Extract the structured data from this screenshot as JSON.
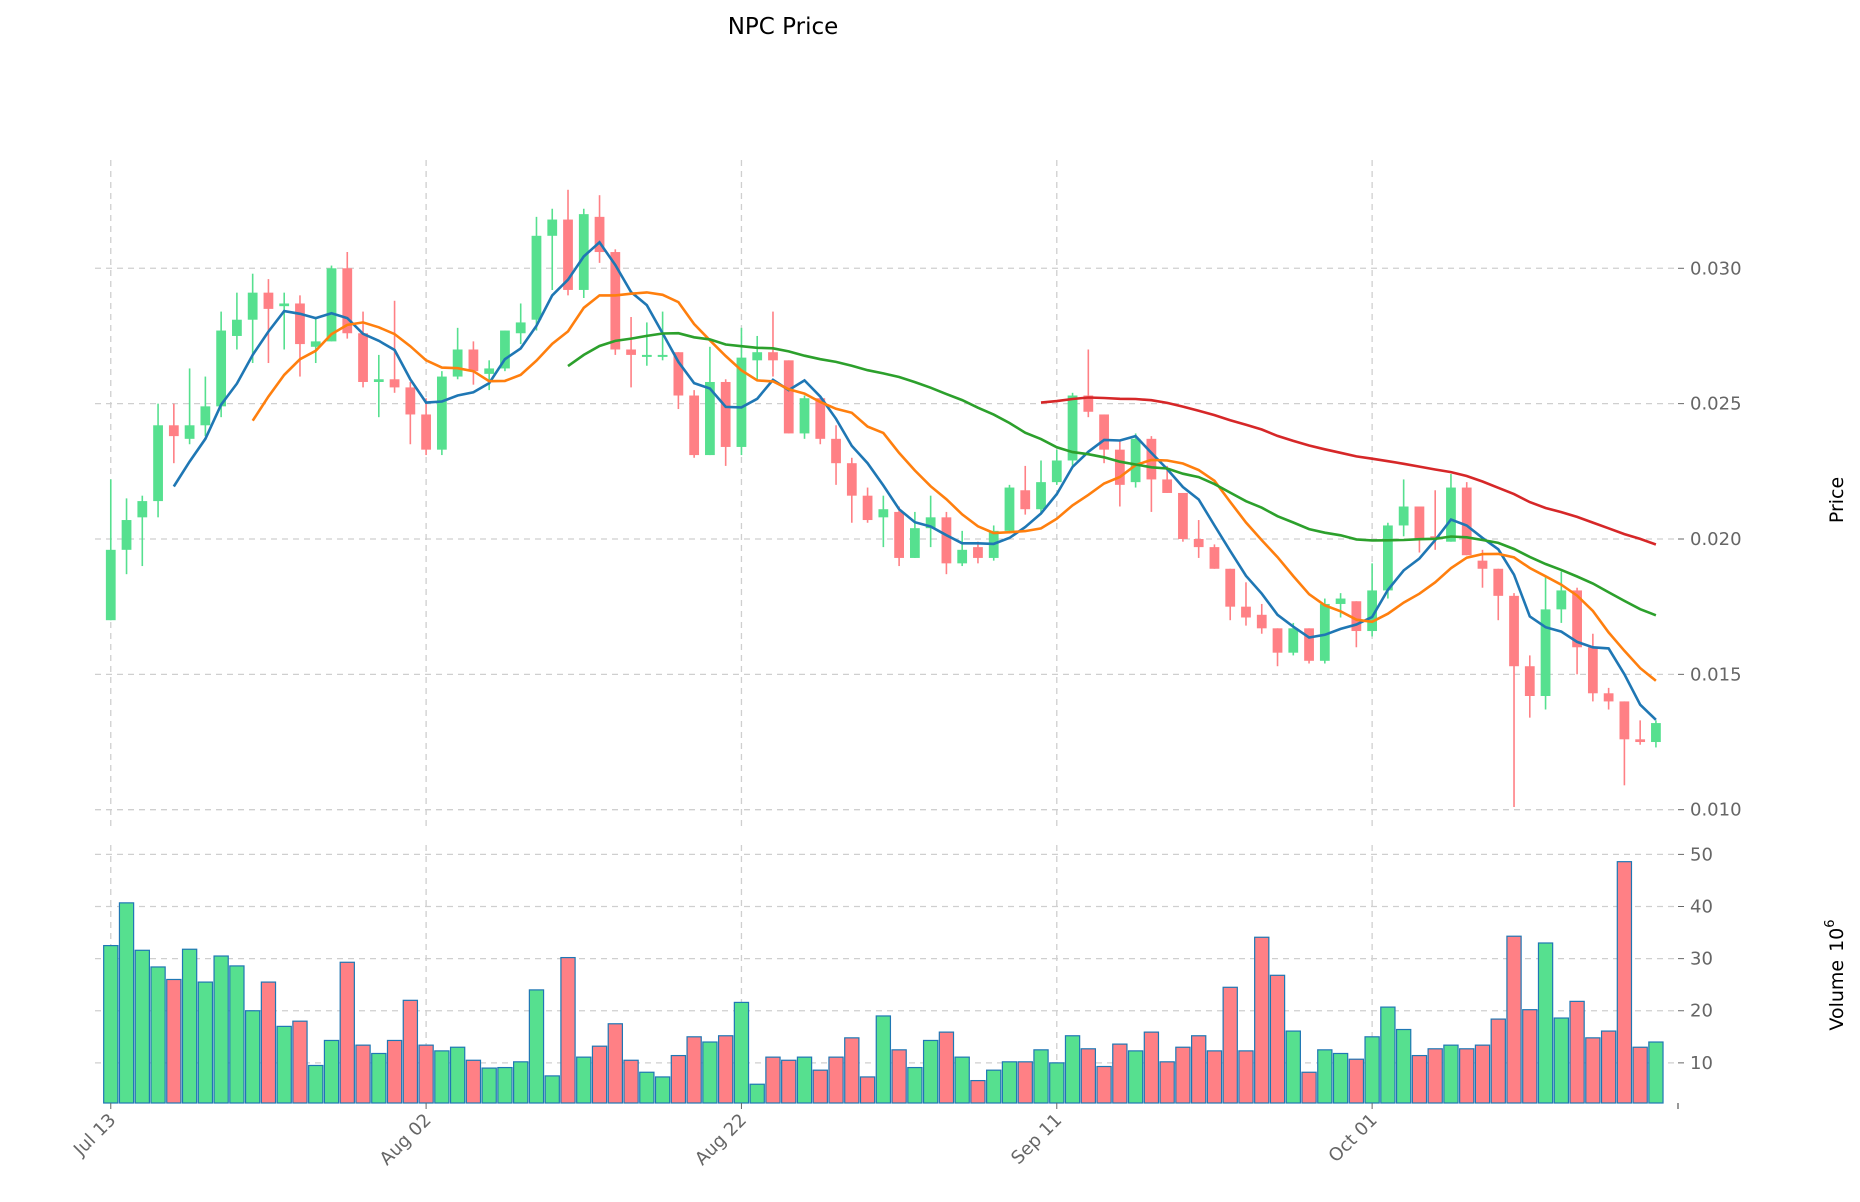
{
  "chart_data": {
    "type": "candlestick",
    "title": "NPC Price",
    "price_panel": {
      "ylabel": "Price",
      "ylim": [
        0.00925,
        0.034
      ],
      "yticks": [
        0.01,
        0.015,
        0.02,
        0.025,
        0.03
      ],
      "ytick_labels": [
        "0.010",
        "0.015",
        "0.020",
        "0.025",
        "0.030"
      ],
      "grid": true
    },
    "volume_panel": {
      "ylabel": "Volume",
      "ylabel_exponent": "10",
      "ylabel_power": "6",
      "ylim": [
        2.3,
        51.8
      ],
      "yticks": [
        10,
        20,
        30,
        40,
        50
      ],
      "ytick_labels": [
        "10",
        "20",
        "30",
        "40",
        "50"
      ],
      "grid": true
    },
    "x_ticks": [
      {
        "day": 0,
        "label": "Jul 13"
      },
      {
        "day": 20,
        "label": "Aug 02"
      },
      {
        "day": 40,
        "label": "Aug 22"
      },
      {
        "day": 60,
        "label": "Sep 11"
      },
      {
        "day": 80,
        "label": "Oct 01"
      }
    ],
    "x_range_days": [
      -1,
      99.4
    ],
    "moving_averages": [
      {
        "window": 5,
        "color": "#1f77b4"
      },
      {
        "window": 10,
        "color": "#ff7f0e"
      },
      {
        "window": 30,
        "color": "#2ca02c"
      },
      {
        "window": 60,
        "color": "#d62728"
      }
    ],
    "colors": {
      "up": "#56e08f",
      "down": "#ff8085",
      "volume_edge": "#1f77b4"
    },
    "open": [
      0.017,
      0.0196,
      0.0208,
      0.0214,
      0.0242,
      0.0237,
      0.0242,
      0.0249,
      0.0275,
      0.0281,
      0.0291,
      0.0286,
      0.0287,
      0.0271,
      0.0273,
      0.03,
      0.0276,
      0.0258,
      0.0259,
      0.0256,
      0.0246,
      0.0233,
      0.026,
      0.027,
      0.0261,
      0.0263,
      0.0276,
      0.0281,
      0.0312,
      0.0318,
      0.0292,
      0.0319,
      0.0306,
      0.027,
      0.0268,
      0.0268,
      0.0269,
      0.0253,
      0.0231,
      0.0258,
      0.0234,
      0.0266,
      0.0269,
      0.0266,
      0.0239,
      0.0252,
      0.0237,
      0.0228,
      0.0216,
      0.0208,
      0.021,
      0.0193,
      0.0204,
      0.0208,
      0.0191,
      0.0197,
      0.0193,
      0.0203,
      0.0218,
      0.0211,
      0.0221,
      0.0229,
      0.0253,
      0.0246,
      0.0233,
      0.0221,
      0.0237,
      0.0222,
      0.0217,
      0.02,
      0.0197,
      0.0189,
      0.0175,
      0.0172,
      0.0167,
      0.0158,
      0.0167,
      0.0155,
      0.0176,
      0.0177,
      0.0166,
      0.0181,
      0.0205,
      0.0212,
      0.0201,
      0.0199,
      0.0219,
      0.0192,
      0.0189,
      0.0179,
      0.0153,
      0.0142,
      0.0174,
      0.0181,
      0.016,
      0.0143,
      0.014,
      0.0126,
      0.0125
    ],
    "high": [
      0.0222,
      0.0215,
      0.0216,
      0.025,
      0.025,
      0.0263,
      0.026,
      0.0284,
      0.0291,
      0.0298,
      0.0296,
      0.0291,
      0.029,
      0.0282,
      0.0301,
      0.0306,
      0.0284,
      0.0268,
      0.0288,
      0.0258,
      0.0252,
      0.0262,
      0.0278,
      0.0273,
      0.0266,
      0.0277,
      0.0287,
      0.0319,
      0.0322,
      0.0329,
      0.0322,
      0.0327,
      0.0307,
      0.0282,
      0.028,
      0.0284,
      0.0269,
      0.0255,
      0.0271,
      0.0259,
      0.0278,
      0.0275,
      0.0284,
      0.0266,
      0.0253,
      0.0252,
      0.0242,
      0.023,
      0.0219,
      0.0216,
      0.0212,
      0.021,
      0.0216,
      0.021,
      0.0203,
      0.0199,
      0.0205,
      0.022,
      0.0227,
      0.0229,
      0.0233,
      0.0254,
      0.027,
      0.0246,
      0.0236,
      0.0239,
      0.0238,
      0.0227,
      0.0217,
      0.0207,
      0.0198,
      0.0189,
      0.0184,
      0.0176,
      0.0167,
      0.0169,
      0.0167,
      0.0178,
      0.018,
      0.0177,
      0.0191,
      0.0206,
      0.0222,
      0.0212,
      0.0218,
      0.0224,
      0.0221,
      0.0196,
      0.0189,
      0.018,
      0.0157,
      0.0186,
      0.0188,
      0.0182,
      0.0165,
      0.0145,
      0.014,
      0.0133,
      0.0133
    ],
    "low": [
      0.017,
      0.0187,
      0.019,
      0.0208,
      0.0228,
      0.0235,
      0.0238,
      0.0245,
      0.027,
      0.0265,
      0.0265,
      0.027,
      0.026,
      0.0265,
      0.0273,
      0.0274,
      0.0256,
      0.0245,
      0.0254,
      0.0235,
      0.0231,
      0.0231,
      0.0259,
      0.0257,
      0.0255,
      0.0262,
      0.0272,
      0.0277,
      0.0292,
      0.029,
      0.0289,
      0.0302,
      0.0268,
      0.0256,
      0.0264,
      0.0266,
      0.0248,
      0.023,
      0.0231,
      0.0227,
      0.0231,
      0.0259,
      0.026,
      0.0239,
      0.0237,
      0.0235,
      0.022,
      0.0206,
      0.0206,
      0.0197,
      0.019,
      0.0193,
      0.0197,
      0.0187,
      0.019,
      0.0191,
      0.0192,
      0.0202,
      0.0209,
      0.0209,
      0.022,
      0.0227,
      0.0245,
      0.0228,
      0.0212,
      0.0219,
      0.021,
      0.0217,
      0.0199,
      0.0193,
      0.0189,
      0.017,
      0.0168,
      0.0165,
      0.0153,
      0.0157,
      0.0154,
      0.0154,
      0.0171,
      0.016,
      0.0164,
      0.0178,
      0.0201,
      0.0195,
      0.0196,
      0.0199,
      0.0194,
      0.0182,
      0.017,
      0.0101,
      0.0134,
      0.0137,
      0.0169,
      0.015,
      0.014,
      0.0137,
      0.0109,
      0.0124,
      0.0123
    ],
    "close": [
      0.0196,
      0.0207,
      0.0214,
      0.0242,
      0.0238,
      0.0242,
      0.0249,
      0.0277,
      0.0281,
      0.0291,
      0.0285,
      0.0287,
      0.0272,
      0.0273,
      0.03,
      0.0276,
      0.0258,
      0.0259,
      0.0256,
      0.0246,
      0.0233,
      0.026,
      0.027,
      0.0262,
      0.0263,
      0.0277,
      0.028,
      0.0312,
      0.0318,
      0.0292,
      0.032,
      0.0306,
      0.027,
      0.0268,
      0.0268,
      0.0268,
      0.0253,
      0.0231,
      0.0258,
      0.0234,
      0.0267,
      0.0269,
      0.0266,
      0.0239,
      0.0252,
      0.0237,
      0.0228,
      0.0216,
      0.0207,
      0.0211,
      0.0193,
      0.0204,
      0.0208,
      0.0191,
      0.0196,
      0.0193,
      0.0203,
      0.0219,
      0.0211,
      0.0221,
      0.0229,
      0.0253,
      0.0247,
      0.0233,
      0.022,
      0.0237,
      0.0222,
      0.0217,
      0.02,
      0.0197,
      0.0189,
      0.0175,
      0.0171,
      0.0167,
      0.0158,
      0.0167,
      0.0155,
      0.0176,
      0.0178,
      0.0166,
      0.0181,
      0.0205,
      0.0212,
      0.02,
      0.02,
      0.0219,
      0.0194,
      0.0189,
      0.0179,
      0.0153,
      0.0142,
      0.0174,
      0.0181,
      0.016,
      0.0143,
      0.014,
      0.0126,
      0.0125,
      0.0132
    ],
    "volume": [
      32.5,
      40.7,
      31.6,
      28.4,
      26.0,
      31.8,
      25.5,
      30.5,
      28.6,
      20.0,
      25.5,
      17.0,
      18.0,
      9.5,
      14.3,
      29.3,
      13.4,
      11.8,
      14.3,
      22.0,
      13.4,
      12.3,
      13.0,
      10.5,
      9.0,
      9.1,
      10.2,
      24.0,
      7.5,
      30.2,
      11.1,
      13.2,
      17.5,
      10.5,
      8.2,
      7.3,
      11.4,
      15.0,
      14.0,
      15.2,
      21.6,
      5.9,
      11.1,
      10.5,
      11.1,
      8.6,
      11.1,
      14.8,
      7.3,
      19.0,
      12.5,
      9.1,
      14.3,
      15.9,
      11.1,
      6.6,
      8.6,
      10.2,
      10.2,
      12.5,
      10.0,
      15.2,
      12.7,
      9.3,
      13.6,
      12.3,
      15.9,
      10.2,
      13.0,
      15.2,
      12.3,
      24.5,
      12.3,
      34.1,
      26.8,
      16.1,
      8.2,
      12.5,
      11.8,
      10.7,
      15.0,
      20.7,
      16.4,
      11.4,
      12.7,
      13.4,
      12.7,
      13.4,
      18.4,
      34.3,
      20.2,
      33.0,
      18.6,
      21.8,
      14.8,
      16.1,
      48.6,
      13.0,
      14.0
    ]
  }
}
